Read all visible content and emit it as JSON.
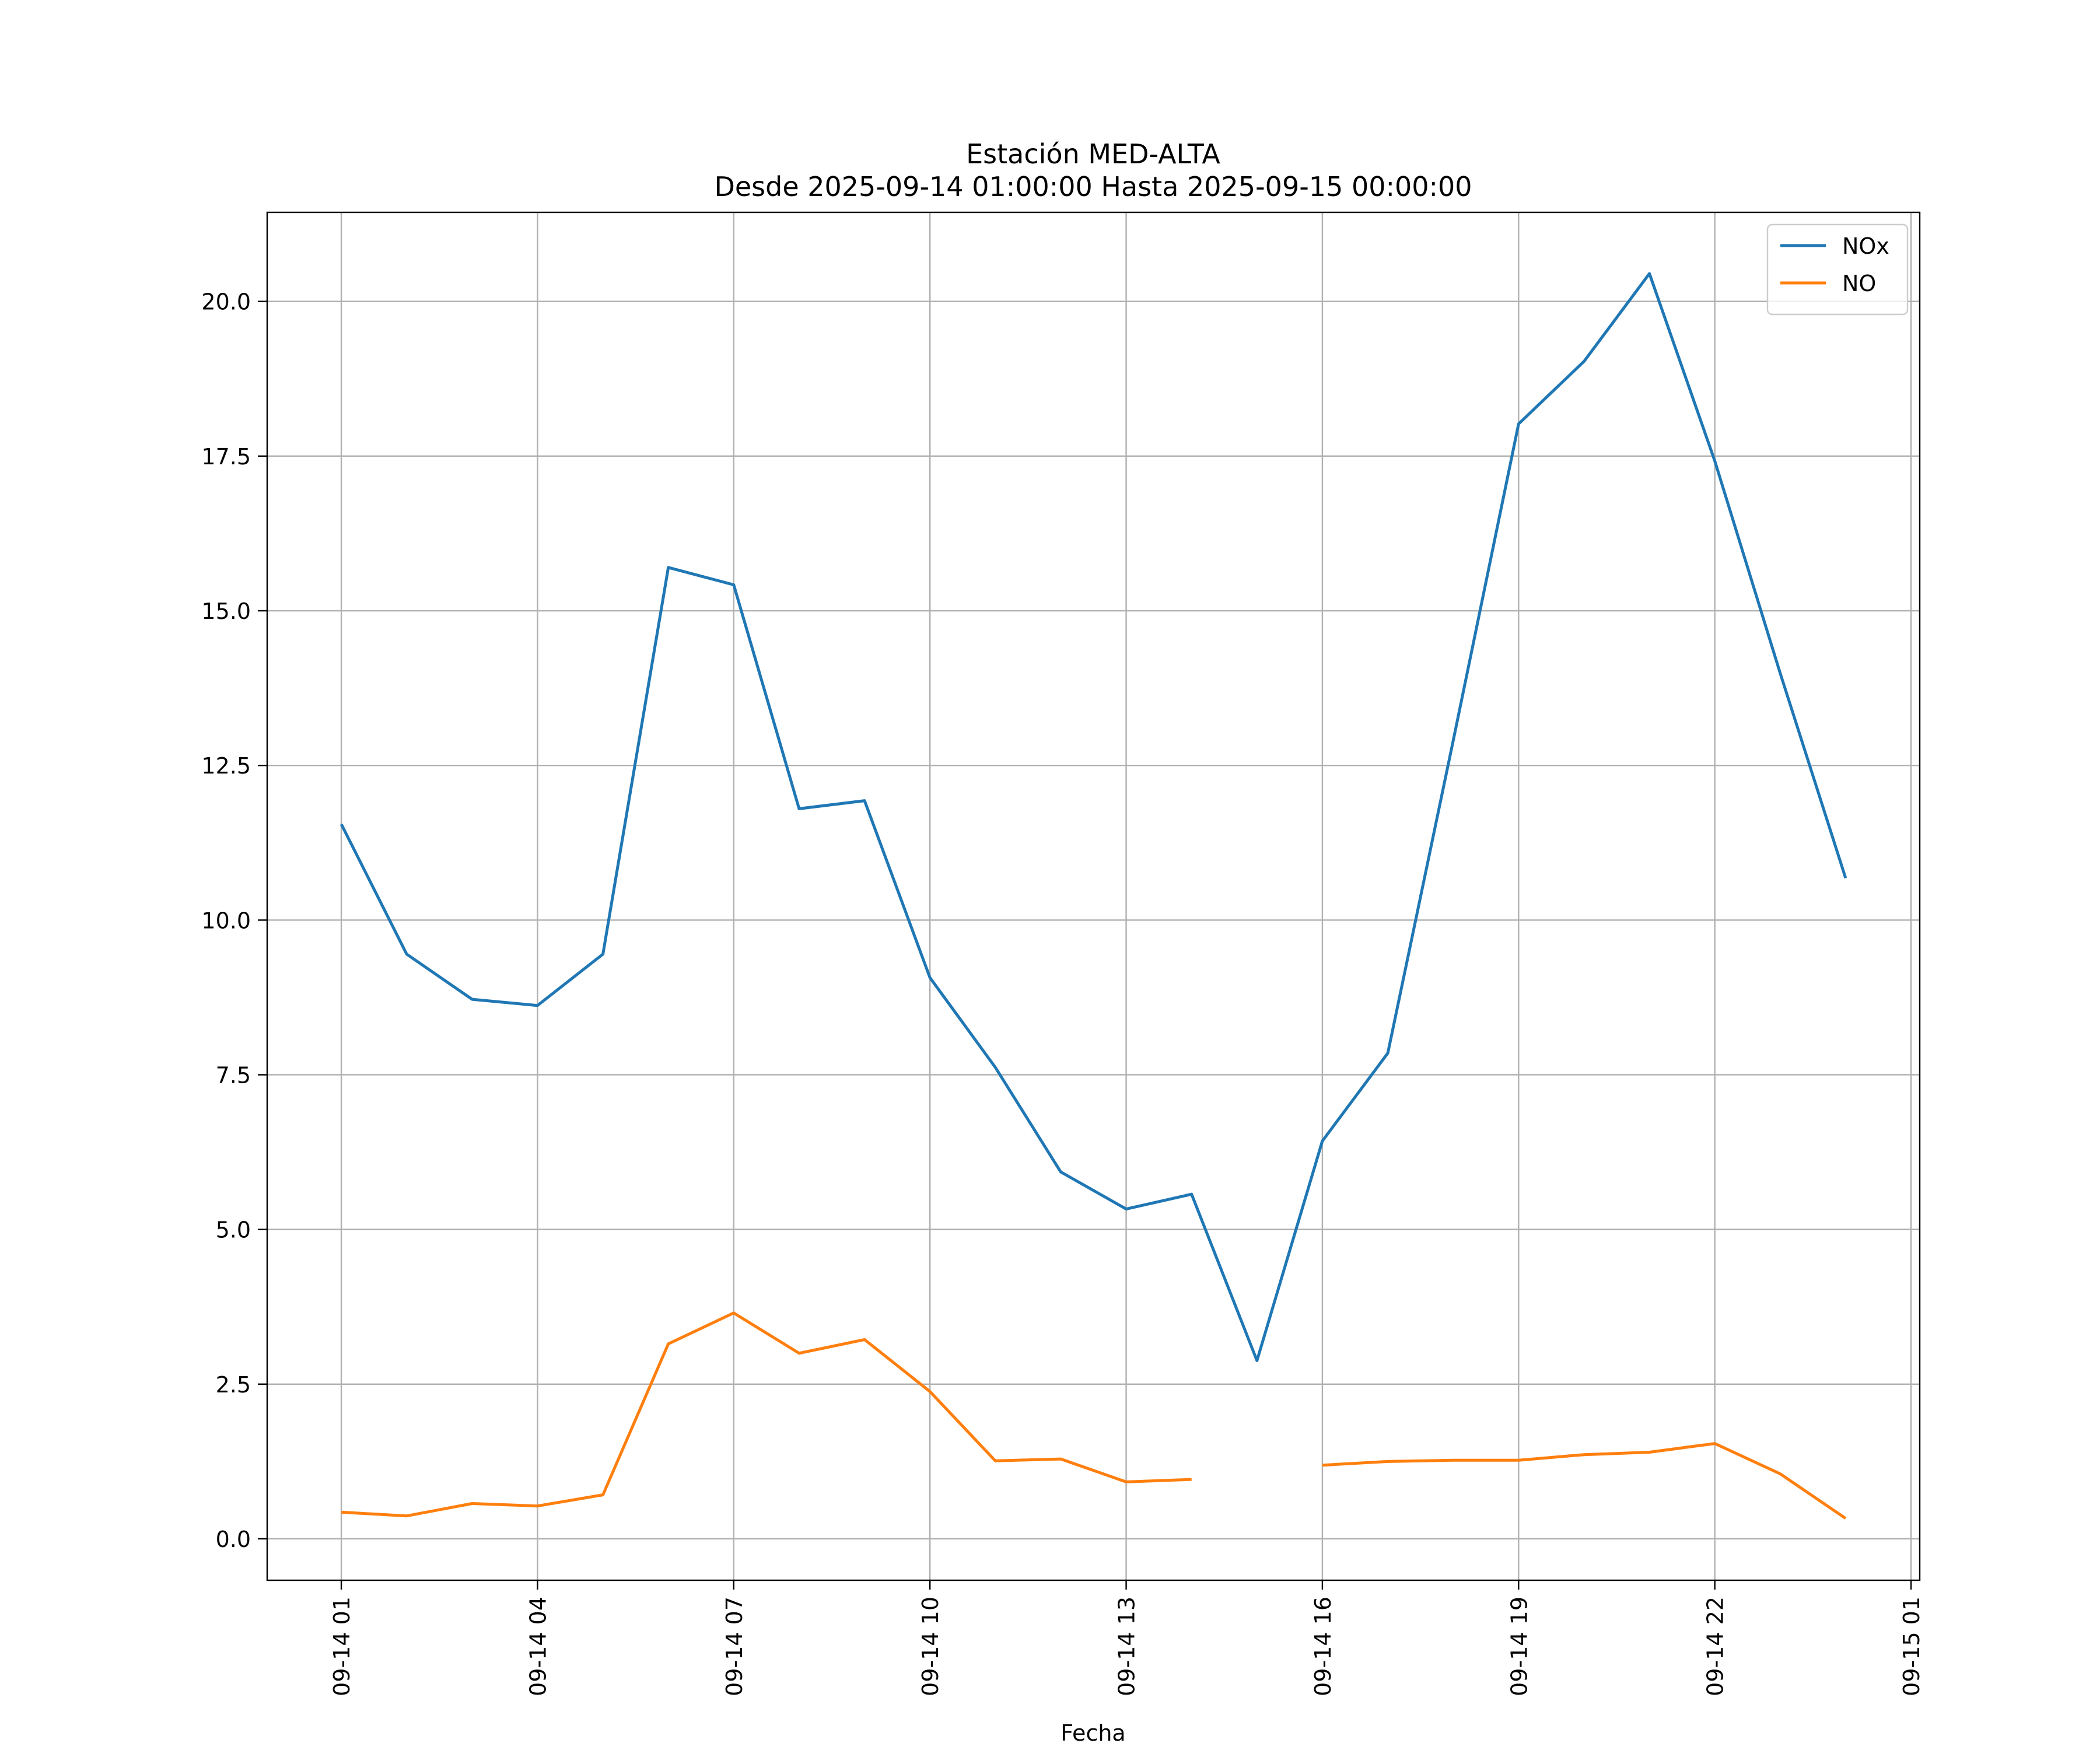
{
  "chart_data": {
    "type": "line",
    "title": "Estación MED-ALTA",
    "subtitle": "Desde 2025-09-14 01:00:00 Hasta 2025-09-15 00:00:00",
    "xlabel": "Fecha",
    "ylabel": "",
    "x": [
      "2025-09-14 01:00",
      "2025-09-14 02:00",
      "2025-09-14 03:00",
      "2025-09-14 04:00",
      "2025-09-14 05:00",
      "2025-09-14 06:00",
      "2025-09-14 07:00",
      "2025-09-14 08:00",
      "2025-09-14 09:00",
      "2025-09-14 10:00",
      "2025-09-14 11:00",
      "2025-09-14 12:00",
      "2025-09-14 13:00",
      "2025-09-14 14:00",
      "2025-09-14 15:00",
      "2025-09-14 16:00",
      "2025-09-14 17:00",
      "2025-09-14 18:00",
      "2025-09-14 19:00",
      "2025-09-14 20:00",
      "2025-09-14 21:00",
      "2025-09-14 22:00",
      "2025-09-14 23:00",
      "2025-09-15 00:00"
    ],
    "series": [
      {
        "name": "NOx",
        "color": "#1f77b4",
        "values": [
          11.55,
          9.45,
          8.72,
          8.62,
          9.45,
          15.7,
          15.42,
          11.8,
          11.93,
          9.07,
          7.62,
          5.93,
          5.33,
          5.57,
          2.88,
          6.43,
          7.85,
          12.9,
          18.02,
          19.03,
          20.45,
          17.42,
          13.99,
          10.68
        ]
      },
      {
        "name": "NO",
        "color": "#ff7f0e",
        "values": [
          0.43,
          0.37,
          0.57,
          0.53,
          0.71,
          3.15,
          3.65,
          3.0,
          3.22,
          2.38,
          1.26,
          1.29,
          0.92,
          0.96,
          null,
          1.19,
          1.25,
          1.27,
          1.27,
          1.36,
          1.4,
          1.54,
          1.05,
          0.33
        ]
      }
    ],
    "xticks": [
      "09-14 01",
      "09-14 04",
      "09-14 07",
      "09-14 10",
      "09-14 13",
      "09-14 16",
      "09-14 19",
      "09-14 22",
      "09-15 01"
    ],
    "xtick_values": [
      "2025-09-14 01:00",
      "2025-09-14 04:00",
      "2025-09-14 07:00",
      "2025-09-14 10:00",
      "2025-09-14 13:00",
      "2025-09-14 16:00",
      "2025-09-14 19:00",
      "2025-09-14 22:00",
      "2025-09-15 01:00"
    ],
    "yticks": [
      "0.0",
      "2.5",
      "5.0",
      "7.5",
      "10.0",
      "12.5",
      "15.0",
      "17.5",
      "20.0"
    ],
    "ytick_values": [
      0,
      2.5,
      5.0,
      7.5,
      10.0,
      12.5,
      15.0,
      17.5,
      20.0
    ],
    "xlim": [
      "2025-09-13 23:52",
      "2025-09-15 01:08"
    ],
    "ylim": [
      -0.67,
      21.44
    ],
    "grid": true,
    "legend": "upper right"
  }
}
